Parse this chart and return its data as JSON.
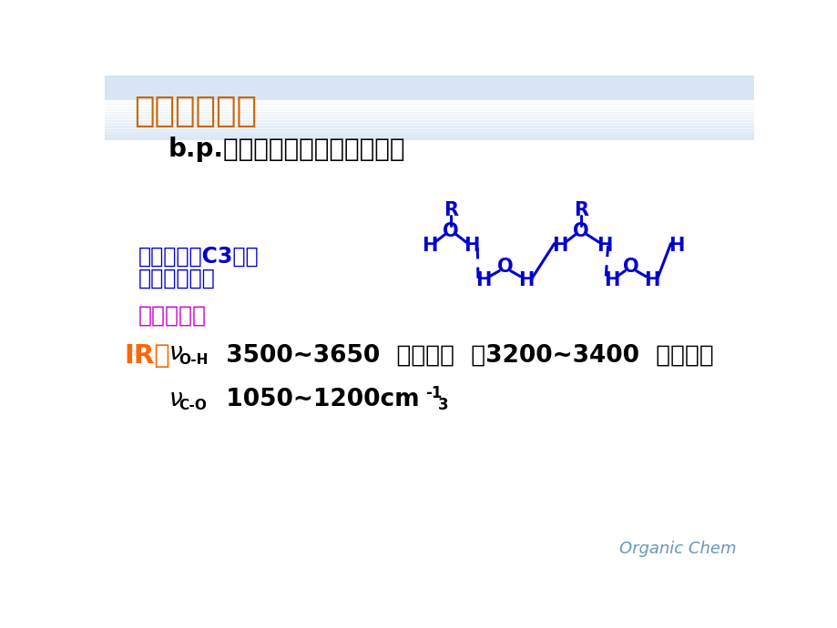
{
  "title": "二、物理性质",
  "title_color": "#CC6600",
  "bg_color": "#FFFFFF",
  "sky_color": "#C8DCF0",
  "line1": "b.p.比分子量相近的烷烃高得多",
  "line1_color": "#000000",
  "line2_1": "易溶于水：C3以下",
  "line2_2": "的醇与水混溶",
  "line2_color": "#0000CC",
  "spectral_title": "波谱性质：",
  "spectral_color": "#CC00CC",
  "ir_label": "IR：",
  "ir_color": "#FF6600",
  "footer": "Organic Chem",
  "footer_color": "#6699BB",
  "blue": "#0000CC",
  "black": "#000000"
}
